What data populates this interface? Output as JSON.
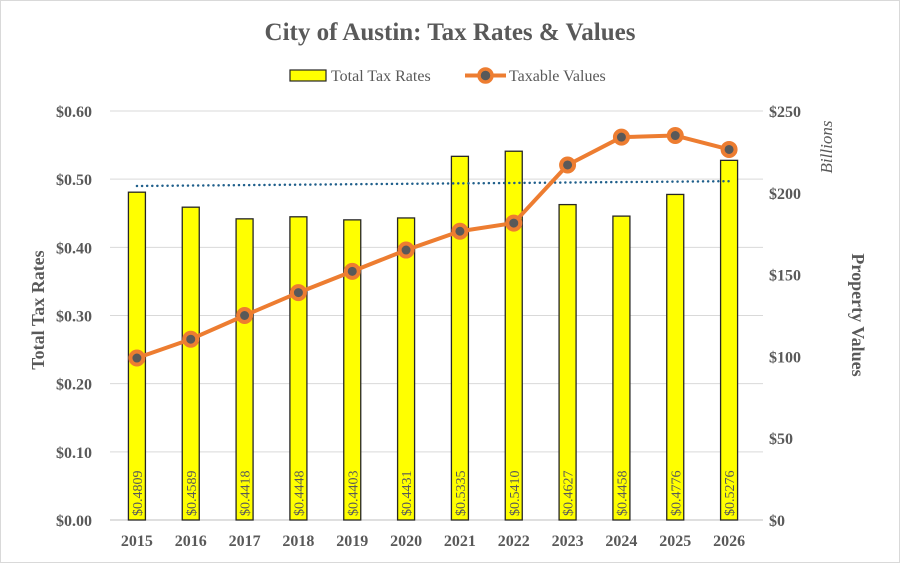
{
  "chart_data": {
    "type": "bar",
    "title": "City of Austin: Tax Rates & Values",
    "categories": [
      "2015",
      "2016",
      "2017",
      "2018",
      "2019",
      "2020",
      "2021",
      "2022",
      "2023",
      "2024",
      "2025",
      "2026"
    ],
    "series": [
      {
        "name": "Total Tax Rates",
        "type": "bar",
        "axis": "left",
        "color": "#ffff00",
        "border_color": "#262626",
        "values": [
          0.4809,
          0.4589,
          0.4418,
          0.4448,
          0.4403,
          0.4431,
          0.5335,
          0.541,
          0.4627,
          0.4458,
          0.4776,
          0.5276
        ],
        "data_labels": [
          "$0.4809",
          "$0.4589",
          "$0.4418",
          "$0.4448",
          "$0.4403",
          "$0.4431",
          "$0.5335",
          "$0.5410",
          "$0.4627",
          "$0.4458",
          "$0.4776",
          "$0.5276"
        ]
      },
      {
        "name": "Taxable Values",
        "type": "line",
        "axis": "right",
        "color": "#ed7d31",
        "marker_color": "#595959",
        "values": [
          99,
          110.5,
          125,
          139,
          152,
          165,
          176.5,
          181.5,
          217,
          234,
          235,
          226.5
        ]
      }
    ],
    "trendline": {
      "of_series": "Total Tax Rates",
      "type": "linear",
      "style": "dotted",
      "color": "#1f5f8b",
      "start": 0.49,
      "end": 0.497
    },
    "left_axis": {
      "title": "Total Tax Rates",
      "ylim": [
        0,
        0.6
      ],
      "ticks": [
        0,
        0.1,
        0.2,
        0.3,
        0.4,
        0.5,
        0.6
      ],
      "tick_labels": [
        "$0.00",
        "$0.10",
        "$0.20",
        "$0.30",
        "$0.40",
        "$0.50",
        "$0.60"
      ]
    },
    "right_axis": {
      "title": "Property Values",
      "unit_label": "Billions",
      "ylim": [
        0,
        250
      ],
      "ticks": [
        0,
        50,
        100,
        150,
        200,
        250
      ],
      "tick_labels": [
        "$0",
        "$50",
        "$100",
        "$150",
        "$200",
        "$250"
      ]
    },
    "xlabel": "",
    "grid": true,
    "legend": {
      "position": "top",
      "entries": [
        "Total Tax Rates",
        "Taxable Values"
      ]
    }
  }
}
